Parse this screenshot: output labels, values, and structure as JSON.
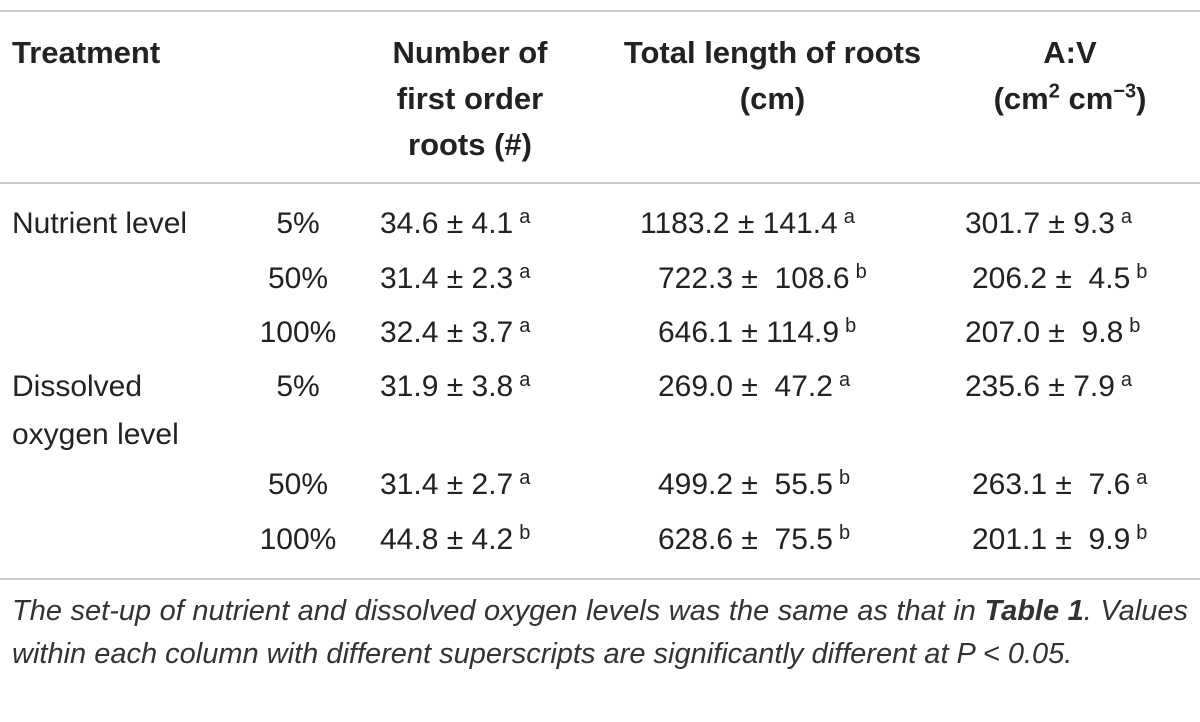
{
  "headers": {
    "treatment": "Treatment",
    "roots_line1": "Number of",
    "roots_line2": "first order",
    "roots_line3": "roots (#)",
    "length_line1": "Total length of roots",
    "length_line2": "(cm)",
    "av_line1": "A:V",
    "av_unit_a": "(cm",
    "av_sup_a": "2",
    "av_unit_b": " cm",
    "av_sup_b": "−3",
    "av_unit_c": ")"
  },
  "groups": {
    "nutrient": "Nutrient level",
    "oxygen_line1": "Dissolved",
    "oxygen_line2": "oxygen level"
  },
  "rows": [
    {
      "level": "5%",
      "roots": "34.6 ± 4.1",
      "roots_sig": "a",
      "length": "1183.2 ± 141.4",
      "length_sig": "a",
      "av": "301.7 ± 9.3",
      "av_sig": "a"
    },
    {
      "level": "50%",
      "roots": "31.4 ± 2.3",
      "roots_sig": "a",
      "length": "722.3 ±  108.6",
      "length_sig": "b",
      "av": "206.2 ±  4.5",
      "av_sig": "b"
    },
    {
      "level": "100%",
      "roots": "32.4 ± 3.7",
      "roots_sig": "a",
      "length": "646.1 ± 114.9",
      "length_sig": "b",
      "av": "207.0 ±  9.8",
      "av_sig": "b"
    },
    {
      "level": "5%",
      "roots": "31.9 ± 3.8",
      "roots_sig": "a",
      "length": "269.0 ±  47.2",
      "length_sig": "a",
      "av": "235.6 ± 7.9",
      "av_sig": "a"
    },
    {
      "level": "50%",
      "roots": "31.4 ± 2.7",
      "roots_sig": "a",
      "length": "499.2 ±  55.5",
      "length_sig": "b",
      "av": "263.1 ±  7.6",
      "av_sig": "a"
    },
    {
      "level": "100%",
      "roots": "44.8 ± 4.2",
      "roots_sig": "b",
      "length": "628.6 ±  75.5",
      "length_sig": "b",
      "av": "201.1 ±  9.9",
      "av_sig": "b"
    }
  ],
  "footnote": {
    "part1": "The set-up of nutrient and dissolved oxygen levels was the same as that in ",
    "table_ref": "Table 1",
    "part2": ". Values within each column with different superscripts are significantly different at P < 0.05."
  }
}
